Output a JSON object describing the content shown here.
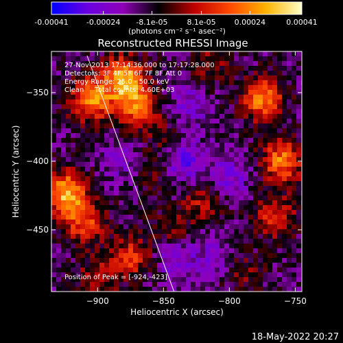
{
  "chart_data": {
    "type": "heatmap",
    "title": "Reconstructed RHESSI Image",
    "xlabel": "Heliocentric X (arcsec)",
    "ylabel": "Heliocentric Y (arcsec)",
    "xlim": [
      -935,
      -745
    ],
    "ylim": [
      -495,
      -320
    ],
    "x_ticks": [
      -900,
      -850,
      -800,
      -750
    ],
    "x_tick_labels": [
      "−900",
      "−850",
      "−800",
      "−750"
    ],
    "y_ticks": [
      -350,
      -400,
      -450
    ],
    "y_tick_labels": [
      "−350",
      "−400",
      "−450"
    ],
    "colorbar": {
      "min": -0.00041,
      "max": 0.00041,
      "tick_values": [
        -0.00041,
        -0.00024,
        -8.1e-05,
        8.1e-05,
        0.00024,
        0.00041
      ],
      "tick_labels": [
        "-0.00041",
        "-0.00024",
        "-8.1e-05",
        "8.1e-05",
        "0.00024",
        "0.00041"
      ],
      "unit_label": "(photons cm⁻² s⁻¹ asec⁻²)",
      "colors": [
        "#0000ff",
        "#6a00e0",
        "#8f00b8",
        "#000000",
        "#c00000",
        "#ff4a00",
        "#ffb400",
        "#ffffc8"
      ]
    },
    "annotations": [
      "27-Nov-2013 17:14:36.000 to 17:17:28.000",
      "Detectors: 3F 4F 5F 6F 7F 8F  Att 0",
      "Energy Range: 25.0 - 50.0 keV",
      "Clean     Total counts: 4.60E+03"
    ],
    "peak_label": "Position of Peak = [-924,-423]",
    "limb_line": [
      [
        -908,
        -323
      ],
      [
        -842,
        -495
      ]
    ],
    "blobs": [
      {
        "x": -880,
        "y": -340,
        "value": 0.00041
      },
      {
        "x": -905,
        "y": -355,
        "value": 0.00035
      },
      {
        "x": -870,
        "y": -360,
        "value": 0.00028
      },
      {
        "x": -924,
        "y": -423,
        "value": 0.00041
      },
      {
        "x": -910,
        "y": -445,
        "value": 0.00026
      },
      {
        "x": -775,
        "y": -355,
        "value": 0.00034
      },
      {
        "x": -760,
        "y": -400,
        "value": 0.00033
      },
      {
        "x": -765,
        "y": -440,
        "value": 0.00022
      },
      {
        "x": -875,
        "y": -470,
        "value": 0.00022
      },
      {
        "x": -820,
        "y": -430,
        "value": 0.00016
      },
      {
        "x": -845,
        "y": -450,
        "value": 0.00012
      },
      {
        "x": -860,
        "y": -405,
        "value": 0.0001
      },
      {
        "x": -815,
        "y": -330,
        "value": 0.00012
      },
      {
        "x": -790,
        "y": -480,
        "value": 0.00012
      },
      {
        "x": -900,
        "y": -485,
        "value": 0.00015
      },
      {
        "x": -850,
        "y": -380,
        "value": 8e-05
      },
      {
        "x": -835,
        "y": -400,
        "value": -0.00018
      },
      {
        "x": -830,
        "y": -360,
        "value": -0.00013
      },
      {
        "x": -800,
        "y": -410,
        "value": -0.00015
      },
      {
        "x": -840,
        "y": -470,
        "value": -0.00014
      },
      {
        "x": -880,
        "y": -400,
        "value": -0.0001
      },
      {
        "x": -810,
        "y": -470,
        "value": -0.00012
      }
    ]
  },
  "footer": {
    "timestamp": "18-May-2022 20:27"
  }
}
